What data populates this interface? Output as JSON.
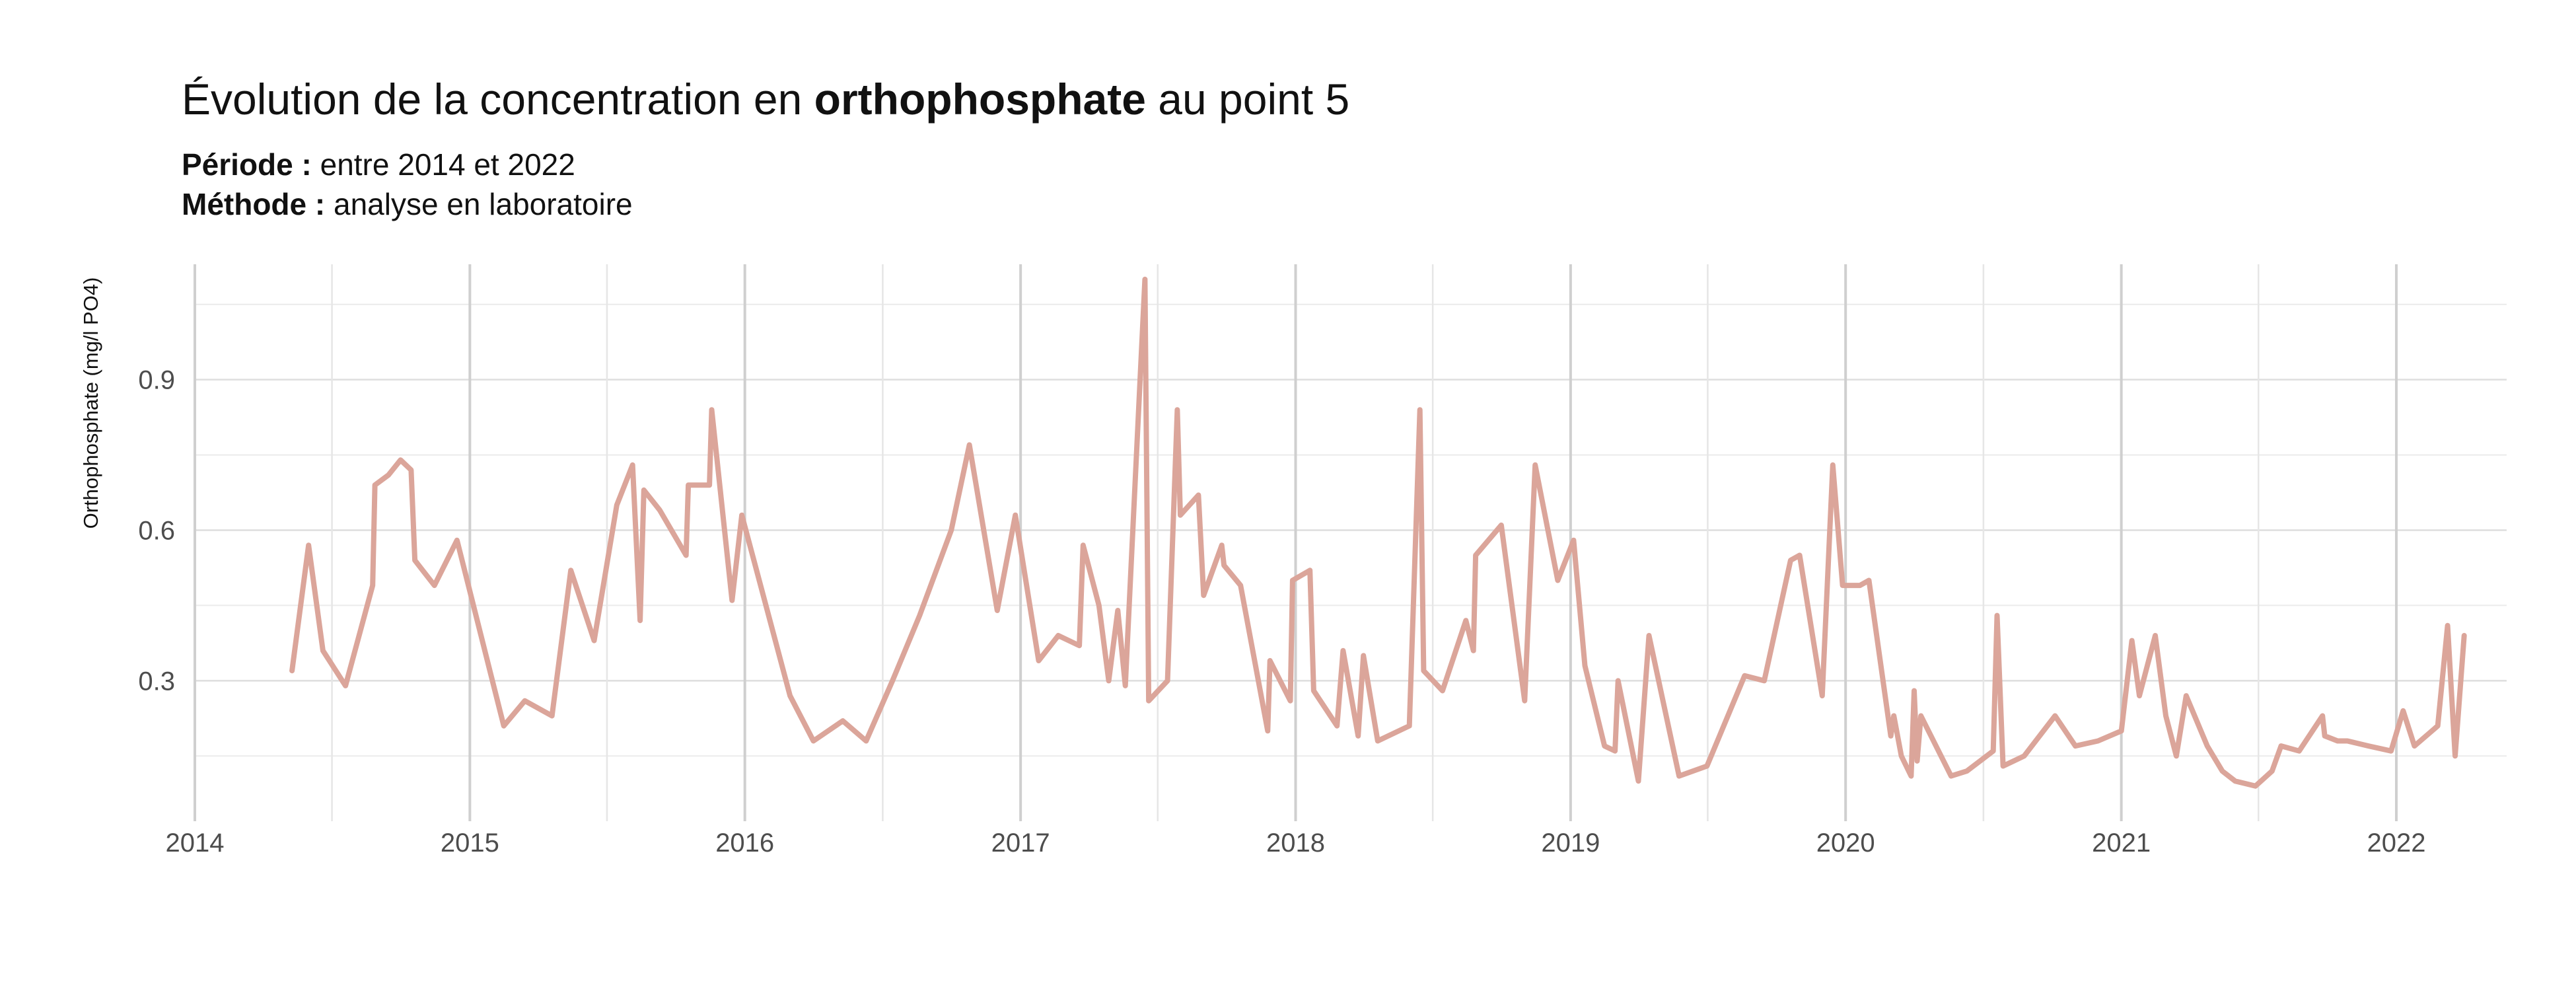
{
  "chart_data": {
    "type": "line",
    "title": {
      "prefix": "Évolution de la concentration en ",
      "emphasis": "orthophosphate",
      "suffix": " au point 5"
    },
    "subtitle": [
      {
        "label": "Période :",
        "text": "entre 2014 et 2022"
      },
      {
        "label": "Méthode :",
        "text": "analyse en laboratoire"
      }
    ],
    "xlabel": "",
    "ylabel": "Orthophosphate (mg/l PO4)",
    "x_ticks": [
      "2014",
      "2015",
      "2016",
      "2017",
      "2018",
      "2019",
      "2020",
      "2021",
      "2022"
    ],
    "y_ticks": [
      0.3,
      0.6,
      0.9
    ],
    "xlim": [
      "2014-01-01",
      "2022-04-01"
    ],
    "ylim": [
      0.02,
      1.13
    ],
    "grid": true,
    "line_color": "#dba59a",
    "series": [
      {
        "points": [
          [
            "2014-05-10",
            0.32
          ],
          [
            "2014-06-01",
            0.57
          ],
          [
            "2014-06-20",
            0.36
          ],
          [
            "2014-07-20",
            0.29
          ],
          [
            "2014-08-25",
            0.49
          ],
          [
            "2014-08-28",
            0.69
          ],
          [
            "2014-09-15",
            0.71
          ],
          [
            "2014-10-01",
            0.74
          ],
          [
            "2014-10-15",
            0.72
          ],
          [
            "2014-10-20",
            0.54
          ],
          [
            "2014-11-15",
            0.49
          ],
          [
            "2014-12-15",
            0.58
          ],
          [
            "2015-02-15",
            0.21
          ],
          [
            "2015-03-15",
            0.26
          ],
          [
            "2015-04-20",
            0.23
          ],
          [
            "2015-05-15",
            0.52
          ],
          [
            "2015-06-15",
            0.38
          ],
          [
            "2015-07-15",
            0.65
          ],
          [
            "2015-08-05",
            0.73
          ],
          [
            "2015-08-15",
            0.42
          ],
          [
            "2015-08-20",
            0.68
          ],
          [
            "2015-09-10",
            0.64
          ],
          [
            "2015-10-15",
            0.55
          ],
          [
            "2015-10-18",
            0.69
          ],
          [
            "2015-11-15",
            0.69
          ],
          [
            "2015-11-18",
            0.84
          ],
          [
            "2015-12-15",
            0.46
          ],
          [
            "2015-12-28",
            0.63
          ],
          [
            "2016-03-01",
            0.27
          ],
          [
            "2016-04-01",
            0.18
          ],
          [
            "2016-05-10",
            0.22
          ],
          [
            "2016-06-10",
            0.18
          ],
          [
            "2016-07-15",
            0.3
          ],
          [
            "2016-08-20",
            0.43
          ],
          [
            "2016-10-01",
            0.6
          ],
          [
            "2016-10-25",
            0.77
          ],
          [
            "2016-12-01",
            0.44
          ],
          [
            "2016-12-25",
            0.63
          ],
          [
            "2017-01-25",
            0.34
          ],
          [
            "2017-02-20",
            0.39
          ],
          [
            "2017-03-20",
            0.37
          ],
          [
            "2017-03-25",
            0.57
          ],
          [
            "2017-04-15",
            0.45
          ],
          [
            "2017-04-28",
            0.3
          ],
          [
            "2017-05-10",
            0.44
          ],
          [
            "2017-05-20",
            0.29
          ],
          [
            "2017-06-15",
            1.1
          ],
          [
            "2017-06-20",
            0.26
          ],
          [
            "2017-07-15",
            0.3
          ],
          [
            "2017-07-28",
            0.84
          ],
          [
            "2017-08-01",
            0.63
          ],
          [
            "2017-08-25",
            0.67
          ],
          [
            "2017-09-01",
            0.47
          ],
          [
            "2017-09-25",
            0.57
          ],
          [
            "2017-09-28",
            0.53
          ],
          [
            "2017-10-20",
            0.49
          ],
          [
            "2017-11-25",
            0.2
          ],
          [
            "2017-11-28",
            0.34
          ],
          [
            "2017-12-25",
            0.26
          ],
          [
            "2017-12-28",
            0.5
          ],
          [
            "2018-01-20",
            0.52
          ],
          [
            "2018-01-25",
            0.28
          ],
          [
            "2018-02-25",
            0.21
          ],
          [
            "2018-03-05",
            0.36
          ],
          [
            "2018-03-25",
            0.19
          ],
          [
            "2018-04-01",
            0.35
          ],
          [
            "2018-04-20",
            0.18
          ],
          [
            "2018-06-01",
            0.21
          ],
          [
            "2018-06-15",
            0.84
          ],
          [
            "2018-06-20",
            0.32
          ],
          [
            "2018-07-15",
            0.28
          ],
          [
            "2018-08-15",
            0.42
          ],
          [
            "2018-08-25",
            0.36
          ],
          [
            "2018-08-28",
            0.55
          ],
          [
            "2018-10-01",
            0.61
          ],
          [
            "2018-11-01",
            0.26
          ],
          [
            "2018-11-15",
            0.73
          ],
          [
            "2018-12-15",
            0.5
          ],
          [
            "2019-01-05",
            0.58
          ],
          [
            "2019-01-20",
            0.33
          ],
          [
            "2019-02-15",
            0.17
          ],
          [
            "2019-03-01",
            0.16
          ],
          [
            "2019-03-05",
            0.3
          ],
          [
            "2019-04-01",
            0.1
          ],
          [
            "2019-04-15",
            0.39
          ],
          [
            "2019-05-25",
            0.11
          ],
          [
            "2019-07-01",
            0.13
          ],
          [
            "2019-08-20",
            0.31
          ],
          [
            "2019-09-15",
            0.3
          ],
          [
            "2019-10-20",
            0.54
          ],
          [
            "2019-11-01",
            0.55
          ],
          [
            "2019-12-01",
            0.27
          ],
          [
            "2019-12-15",
            0.73
          ],
          [
            "2019-12-28",
            0.49
          ],
          [
            "2020-01-20",
            0.49
          ],
          [
            "2020-02-01",
            0.5
          ],
          [
            "2020-03-01",
            0.19
          ],
          [
            "2020-03-05",
            0.23
          ],
          [
            "2020-03-15",
            0.15
          ],
          [
            "2020-03-28",
            0.11
          ],
          [
            "2020-04-01",
            0.28
          ],
          [
            "2020-04-05",
            0.14
          ],
          [
            "2020-04-10",
            0.23
          ],
          [
            "2020-05-20",
            0.11
          ],
          [
            "2020-06-10",
            0.12
          ],
          [
            "2020-07-15",
            0.16
          ],
          [
            "2020-07-20",
            0.43
          ],
          [
            "2020-07-28",
            0.13
          ],
          [
            "2020-08-25",
            0.15
          ],
          [
            "2020-10-05",
            0.23
          ],
          [
            "2020-11-01",
            0.17
          ],
          [
            "2020-12-01",
            0.18
          ],
          [
            "2021-01-01",
            0.2
          ],
          [
            "2021-01-15",
            0.38
          ],
          [
            "2021-01-25",
            0.27
          ],
          [
            "2021-02-15",
            0.39
          ],
          [
            "2021-03-01",
            0.23
          ],
          [
            "2021-03-15",
            0.15
          ],
          [
            "2021-03-28",
            0.27
          ],
          [
            "2021-04-25",
            0.17
          ],
          [
            "2021-05-15",
            0.12
          ],
          [
            "2021-06-01",
            0.1
          ],
          [
            "2021-06-28",
            0.09
          ],
          [
            "2021-07-20",
            0.12
          ],
          [
            "2021-08-01",
            0.17
          ],
          [
            "2021-08-25",
            0.16
          ],
          [
            "2021-09-25",
            0.23
          ],
          [
            "2021-09-28",
            0.19
          ],
          [
            "2021-10-15",
            0.18
          ],
          [
            "2021-10-28",
            0.18
          ],
          [
            "2021-11-25",
            0.17
          ],
          [
            "2021-12-25",
            0.16
          ],
          [
            "2022-01-10",
            0.24
          ],
          [
            "2022-01-25",
            0.17
          ],
          [
            "2022-02-25",
            0.21
          ],
          [
            "2022-03-10",
            0.41
          ],
          [
            "2022-03-20",
            0.15
          ],
          [
            "2022-04-01",
            0.39
          ]
        ]
      }
    ]
  }
}
